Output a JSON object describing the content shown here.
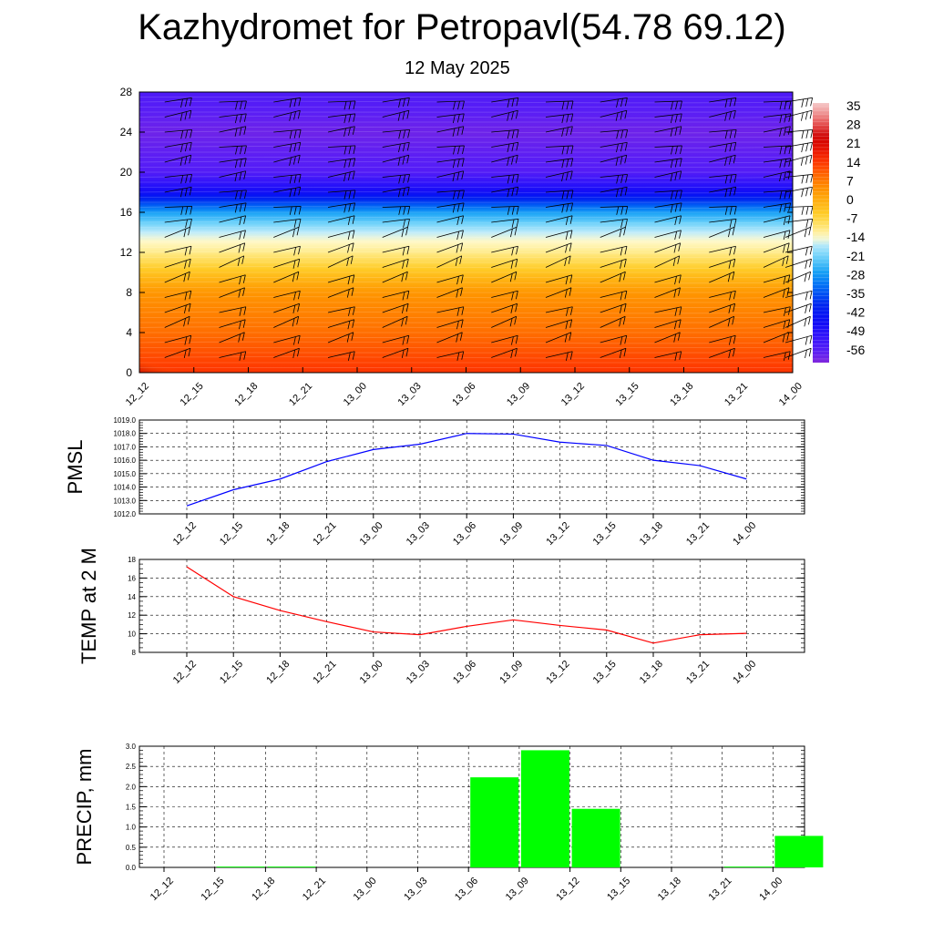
{
  "title": "Kazhydromet for Petropavl(54.78 69.12)",
  "subtitle": "12 May 2025",
  "time_labels": [
    "12_12",
    "12_15",
    "12_18",
    "12_21",
    "13_00",
    "13_03",
    "13_06",
    "13_09",
    "13_12",
    "13_15",
    "13_18",
    "13_21",
    "14_00"
  ],
  "colors": {
    "pmsl_line": "#0000ff",
    "temp_line": "#ff0000",
    "precip_bar": "#00ff00"
  },
  "chart_data": [
    {
      "type": "heatmap",
      "title": "",
      "x": [
        "12_12",
        "12_15",
        "12_18",
        "12_21",
        "13_00",
        "13_03",
        "13_06",
        "13_09",
        "13_12",
        "13_15",
        "13_18",
        "13_21",
        "14_00"
      ],
      "yticks": [
        0,
        4,
        8,
        12,
        16,
        20,
        24,
        28
      ],
      "ylim": [
        0,
        28
      ],
      "colorbar_labels": [
        "35",
        "28",
        "21",
        "14",
        "7",
        "0",
        "-7",
        "-14",
        "-21",
        "-28",
        "-35",
        "-42",
        "-49",
        "-56"
      ],
      "colorbar_range": [
        -60,
        38
      ],
      "temperature_profile": [
        {
          "y": 0,
          "value": 16
        },
        {
          "y": 4,
          "value": 10
        },
        {
          "y": 8,
          "value": 5
        },
        {
          "y": 12,
          "value": -10
        },
        {
          "y": 14,
          "value": -15
        },
        {
          "y": 16,
          "value": -26
        },
        {
          "y": 18,
          "value": -45
        },
        {
          "y": 20,
          "value": -55
        },
        {
          "y": 24,
          "value": -58
        },
        {
          "y": 28,
          "value": -54
        }
      ],
      "overlay": "wind barbs"
    },
    {
      "type": "line",
      "ylabel": "PMSL",
      "categories": [
        "12_12",
        "12_15",
        "12_18",
        "12_21",
        "13_00",
        "13_03",
        "13_06",
        "13_09",
        "13_12",
        "13_15",
        "13_18",
        "13_21",
        "14_00"
      ],
      "values": [
        1012.6,
        1013.8,
        1014.6,
        1015.9,
        1016.8,
        1017.2,
        1018.0,
        1017.95,
        1017.35,
        1017.1,
        1016.0,
        1015.6,
        1014.6
      ],
      "yticks": [
        "1012.0",
        "1013.0",
        "1014.0",
        "1015.0",
        "1016.0",
        "1017.0",
        "1018.0",
        "1019.0"
      ],
      "ylim": [
        1012,
        1019
      ],
      "grid": true
    },
    {
      "type": "line",
      "ylabel": "TEMP at 2 M",
      "categories": [
        "12_12",
        "12_15",
        "12_18",
        "12_21",
        "13_00",
        "13_03",
        "13_06",
        "13_09",
        "13_12",
        "13_15",
        "13_18",
        "13_21",
        "14_00"
      ],
      "values": [
        17.2,
        14.0,
        12.5,
        11.3,
        10.2,
        9.9,
        10.8,
        11.5,
        10.9,
        10.4,
        9.0,
        9.9,
        10.05
      ],
      "yticks": [
        "8",
        "10",
        "12",
        "14",
        "16",
        "18"
      ],
      "ylim": [
        8,
        18
      ],
      "grid": true
    },
    {
      "type": "bar",
      "ylabel": "PRECIP, mm",
      "categories": [
        "12_12",
        "12_15",
        "12_18",
        "12_21",
        "13_00",
        "13_03",
        "13_06",
        "13_09",
        "13_12",
        "13_15",
        "13_18",
        "13_21",
        "14_00"
      ],
      "values": [
        0.0,
        0.02,
        0.02,
        0.0,
        0.0,
        0.0,
        2.23,
        2.9,
        1.45,
        0.0,
        0.0,
        0.02,
        0.78
      ],
      "yticks": [
        "0.0",
        "0.5",
        "1.0",
        "1.5",
        "2.0",
        "2.5",
        "3.0"
      ],
      "ylim": [
        0,
        3
      ],
      "grid": true
    }
  ]
}
